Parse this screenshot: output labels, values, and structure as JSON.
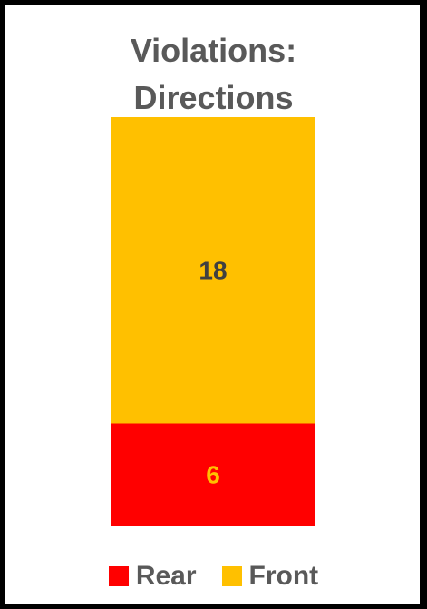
{
  "chart_data": {
    "type": "bar",
    "stacked": true,
    "title_lines": [
      "Violations:",
      "Directions"
    ],
    "categories": [
      ""
    ],
    "series": [
      {
        "name": "Rear",
        "values": [
          6
        ],
        "color": "#ff0000",
        "label_color": "#ffc000"
      },
      {
        "name": "Front",
        "values": [
          18
        ],
        "color": "#ffc000",
        "label_color": "#404040"
      }
    ],
    "ylim": [
      0,
      24
    ],
    "grid": false,
    "legend_position": "bottom"
  }
}
